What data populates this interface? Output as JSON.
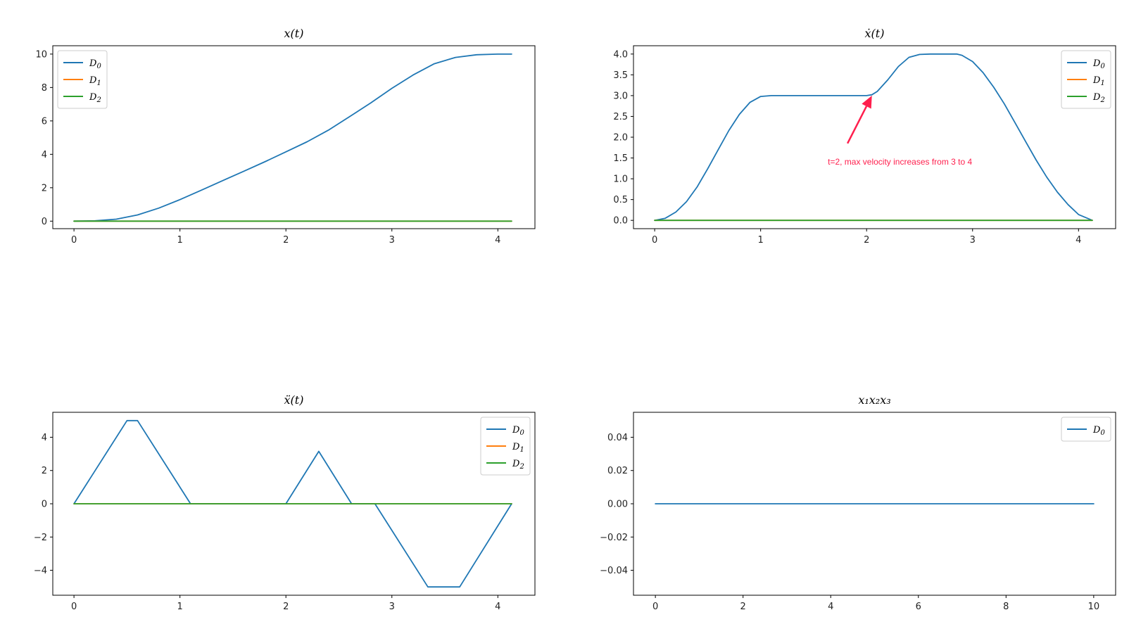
{
  "figure": {
    "background": "#ffffff",
    "colors": {
      "D0": "#1f77b4",
      "D1": "#ff7f0e",
      "D2": "#2ca02c",
      "annotation": "#ff1f4d"
    }
  },
  "chart_data": [
    {
      "type": "line",
      "title": "x(t)",
      "xlim": [
        -0.2,
        4.35
      ],
      "ylim": [
        -0.45,
        10.5
      ],
      "xticks": [
        0,
        1,
        2,
        3,
        4
      ],
      "yticks": [
        0,
        2,
        4,
        6,
        8,
        10
      ],
      "legend_position": "top-left",
      "series": [
        {
          "name": "D0",
          "color": "#1f77b4",
          "x": [
            0,
            0.2,
            0.4,
            0.6,
            0.8,
            1.0,
            1.2,
            1.4,
            1.6,
            1.8,
            2.0,
            2.2,
            2.4,
            2.6,
            2.8,
            3.0,
            3.2,
            3.4,
            3.6,
            3.8,
            4.0,
            4.13
          ],
          "y": [
            0,
            0.02,
            0.12,
            0.37,
            0.78,
            1.29,
            1.85,
            2.42,
            2.98,
            3.55,
            4.15,
            4.75,
            5.44,
            6.25,
            7.07,
            7.95,
            8.75,
            9.42,
            9.8,
            9.96,
            10.0,
            10.0
          ]
        },
        {
          "name": "D1",
          "color": "#ff7f0e",
          "x": [
            0,
            4.13
          ],
          "y": [
            0,
            0
          ]
        },
        {
          "name": "D2",
          "color": "#2ca02c",
          "x": [
            0,
            4.13
          ],
          "y": [
            0,
            0
          ]
        }
      ]
    },
    {
      "type": "line",
      "title": "ẋ(t)",
      "xlim": [
        -0.2,
        4.35
      ],
      "ylim": [
        -0.2,
        4.2
      ],
      "xticks": [
        0,
        1,
        2,
        3,
        4
      ],
      "yticks": [
        0.0,
        0.5,
        1.0,
        1.5,
        2.0,
        2.5,
        3.0,
        3.5,
        4.0
      ],
      "legend_position": "top-right",
      "annotation": {
        "text": "t=2, max velocity increases from 3 to 4",
        "xy": [
          2.05,
          3.0
        ],
        "xytext": [
          1.82,
          1.85
        ]
      },
      "series": [
        {
          "name": "D0",
          "color": "#1f77b4",
          "x": [
            0,
            0.1,
            0.2,
            0.3,
            0.4,
            0.5,
            0.6,
            0.7,
            0.8,
            0.9,
            1.0,
            1.1,
            1.5,
            1.9,
            2.0,
            2.05,
            2.1,
            2.2,
            2.3,
            2.4,
            2.5,
            2.6,
            2.85,
            2.9,
            3.0,
            3.1,
            3.2,
            3.3,
            3.4,
            3.5,
            3.6,
            3.7,
            3.8,
            3.9,
            4.0,
            4.13
          ],
          "y": [
            0,
            0.05,
            0.2,
            0.45,
            0.8,
            1.24,
            1.7,
            2.16,
            2.55,
            2.84,
            2.98,
            3.0,
            3.0,
            3.0,
            3.0,
            3.02,
            3.1,
            3.38,
            3.7,
            3.92,
            3.99,
            4.0,
            4.0,
            3.97,
            3.82,
            3.55,
            3.2,
            2.8,
            2.35,
            1.9,
            1.45,
            1.04,
            0.68,
            0.38,
            0.14,
            0
          ]
        },
        {
          "name": "D1",
          "color": "#ff7f0e",
          "x": [
            0,
            4.13
          ],
          "y": [
            0,
            0
          ]
        },
        {
          "name": "D2",
          "color": "#2ca02c",
          "x": [
            0,
            4.13
          ],
          "y": [
            0,
            0
          ]
        }
      ]
    },
    {
      "type": "line",
      "title": "ẍ(t)",
      "xlim": [
        -0.2,
        4.35
      ],
      "ylim": [
        -5.5,
        5.5
      ],
      "xticks": [
        0,
        1,
        2,
        3,
        4
      ],
      "yticks": [
        -4,
        -2,
        0,
        2,
        4
      ],
      "yticklabels": [
        "−4",
        "−2",
        "0",
        "2",
        "4"
      ],
      "legend_position": "top-right",
      "series": [
        {
          "name": "D0",
          "color": "#1f77b4",
          "x": [
            0,
            0.5,
            0.6,
            1.1,
            2.0,
            2.31,
            2.62,
            2.84,
            3.34,
            3.64,
            4.13
          ],
          "y": [
            0,
            5,
            5,
            0,
            0,
            3.15,
            0,
            0,
            -5,
            -5,
            0
          ]
        },
        {
          "name": "D1",
          "color": "#ff7f0e",
          "x": [
            0,
            4.13
          ],
          "y": [
            0,
            0
          ]
        },
        {
          "name": "D2",
          "color": "#2ca02c",
          "x": [
            0,
            4.13
          ],
          "y": [
            0,
            0
          ]
        }
      ]
    },
    {
      "type": "line",
      "title": "x₁x₂x₃",
      "xlim": [
        -0.5,
        10.5
      ],
      "ylim": [
        -0.055,
        0.055
      ],
      "xticks": [
        0,
        2,
        4,
        6,
        8,
        10
      ],
      "yticks": [
        -0.04,
        -0.02,
        0.0,
        0.02,
        0.04
      ],
      "yticklabels": [
        "−0.04",
        "−0.02",
        "0.00",
        "0.02",
        "0.04"
      ],
      "legend_position": "top-right",
      "series": [
        {
          "name": "D0",
          "color": "#1f77b4",
          "x": [
            0,
            10
          ],
          "y": [
            0,
            0
          ]
        }
      ]
    }
  ]
}
